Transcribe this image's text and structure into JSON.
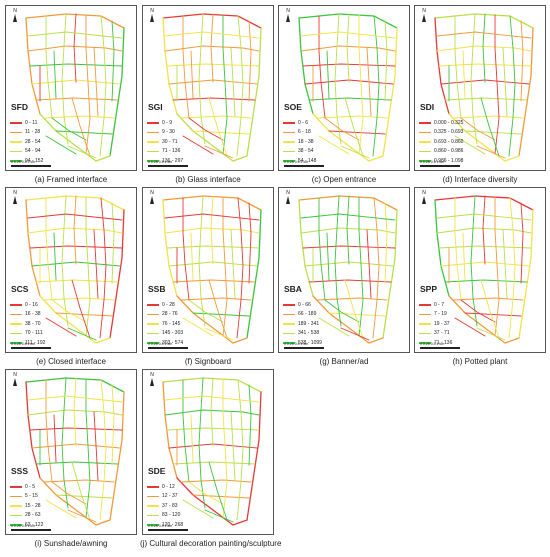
{
  "north_symbol": "N",
  "scale": {
    "ticks": "0   0.25  0.5          1",
    "unit": "km"
  },
  "colors": {
    "c1": "#e53935",
    "c2": "#f29a3a",
    "c3": "#f2e34a",
    "c4": "#b9e04a",
    "c5": "#3cc43c"
  },
  "panels": [
    {
      "id": "a",
      "label": "SFD",
      "caption": "(a) Framed interface",
      "legend": [
        "0 - 11",
        "11 - 28",
        "28 - 54",
        "54 - 94",
        "94 - 152"
      ]
    },
    {
      "id": "b",
      "label": "SGI",
      "caption": "(b) Glass interface",
      "legend": [
        "0 - 9",
        "9 - 30",
        "30 - 71",
        "71 - 136",
        "136 - 297"
      ]
    },
    {
      "id": "c",
      "label": "SOE",
      "caption": "(c) Open entrance",
      "legend": [
        "0 - 6",
        "6 - 18",
        "18 - 38",
        "38 - 54",
        "54 - 148"
      ]
    },
    {
      "id": "d",
      "label": "SDI",
      "caption": "(d) Interface diversity",
      "legend": [
        "0.000 - 0.325",
        "0.325 - 0.693",
        "0.693 - 0.860",
        "0.860 - 0.986",
        "0.986 - 1.098"
      ]
    },
    {
      "id": "e",
      "label": "SCS",
      "caption": "(e) Closed interface",
      "legend": [
        "0 - 16",
        "16 - 38",
        "38 - 70",
        "70 - 111",
        "111 - 192"
      ]
    },
    {
      "id": "f",
      "label": "SSB",
      "caption": "(f) Signboard",
      "legend": [
        "0 - 28",
        "28 - 76",
        "76 - 145",
        "145 - 303",
        "303 - 574"
      ]
    },
    {
      "id": "g",
      "label": "SBA",
      "caption": "(g) Banner/ad",
      "legend": [
        "0 - 66",
        "66 - 189",
        "189 - 341",
        "341 - 538",
        "538 - 1099"
      ]
    },
    {
      "id": "h",
      "label": "SPP",
      "caption": "(h) Potted plant",
      "legend": [
        "0 - 7",
        "7 - 19",
        "19 - 37",
        "37 - 71",
        "71 - 136"
      ]
    },
    {
      "id": "i",
      "label": "SSS",
      "caption": "(i) Sunshade/awning",
      "legend": [
        "0 - 5",
        "5 - 15",
        "15 - 28",
        "28 - 63",
        "63 - 122"
      ]
    },
    {
      "id": "j",
      "label": "SDE",
      "caption": "(j) Cultural decoration painting/sculpture",
      "legend": [
        "0 - 12",
        "12 - 37",
        "37 - 83",
        "83 - 120",
        "120 - 268"
      ]
    }
  ]
}
